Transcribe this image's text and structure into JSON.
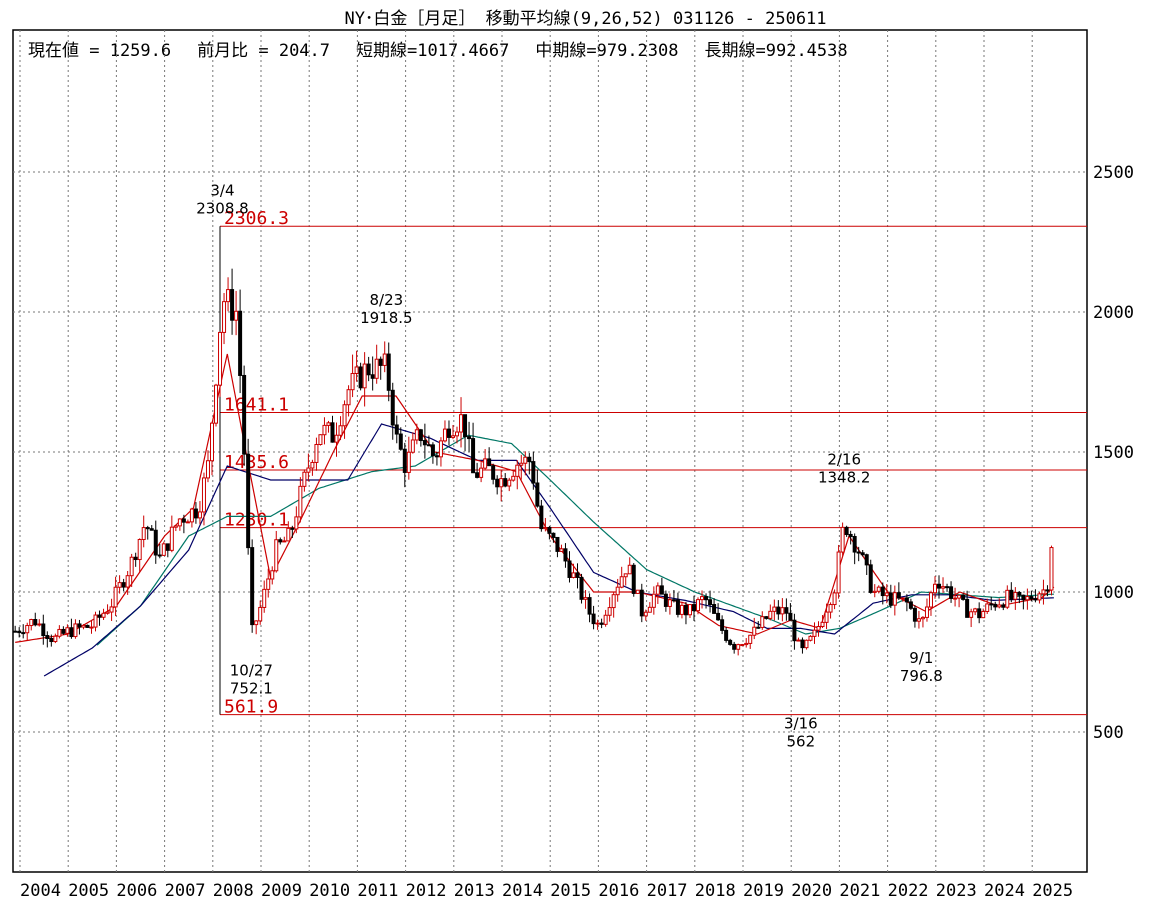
{
  "header": {
    "title": "NY･白金［月足］ 移動平均線(9,26,52)  031126 - 250611",
    "current_value": "現在値 = 1259.6",
    "month_change": "前月比 = 204.7",
    "short_ma": "短期線=1017.4667",
    "mid_ma": "中期線=979.2308",
    "long_ma": "長期線=992.4538"
  },
  "colors": {
    "candle_up": "#cc0000",
    "candle_down": "#000000",
    "short_ma": "#cc0000",
    "mid_ma": "#000066",
    "long_ma": "#007766",
    "level_line": "#cc0000",
    "grid": "#777777"
  },
  "chart_data": {
    "type": "candlestick",
    "x_labels": [
      "2004",
      "2005",
      "2006",
      "2007",
      "2008",
      "2009",
      "2010",
      "2011",
      "2012",
      "2013",
      "2014",
      "2015",
      "2016",
      "2017",
      "2018",
      "2019",
      "2020",
      "2021",
      "2022",
      "2023",
      "2024",
      "2025"
    ],
    "y_ticks": [
      "2500",
      "2000",
      "1500",
      "1000",
      "500"
    ],
    "ylim": [
      0,
      2800
    ],
    "grid": true,
    "levels": [
      {
        "value": 2306.3,
        "label": "2306.3"
      },
      {
        "value": 1641.1,
        "label": "1641.1"
      },
      {
        "value": 1435.6,
        "label": "1435.6"
      },
      {
        "value": 1230.1,
        "label": "1230.1"
      },
      {
        "value": 561.9,
        "label": "561.9"
      }
    ],
    "annotations": [
      {
        "date": "3/4",
        "value": "2308.8",
        "pos": "high",
        "year": 2008.2
      },
      {
        "date": "10/27",
        "value": "752.1",
        "pos": "low",
        "year": 2008.8
      },
      {
        "date": "8/23",
        "value": "1918.5",
        "pos": "high",
        "year": 2011.6
      },
      {
        "date": "2/16",
        "value": "1348.2",
        "pos": "high",
        "year": 2021.1
      },
      {
        "date": "3/16",
        "value": "562",
        "pos": "low",
        "year": 2020.2
      },
      {
        "date": "9/1",
        "value": "796.8",
        "pos": "low",
        "year": 2022.7
      }
    ],
    "price_anchors": [
      [
        2003.9,
        860
      ],
      [
        2004.3,
        900
      ],
      [
        2004.7,
        830
      ],
      [
        2005.0,
        860
      ],
      [
        2005.5,
        880
      ],
      [
        2005.9,
        960
      ],
      [
        2006.3,
        1100
      ],
      [
        2006.6,
        1250
      ],
      [
        2006.9,
        1120
      ],
      [
        2007.3,
        1260
      ],
      [
        2007.7,
        1300
      ],
      [
        2007.9,
        1450
      ],
      [
        2008.2,
        2050
      ],
      [
        2008.5,
        2000
      ],
      [
        2008.65,
        1500
      ],
      [
        2008.8,
        850
      ],
      [
        2009.0,
        950
      ],
      [
        2009.3,
        1150
      ],
      [
        2009.6,
        1200
      ],
      [
        2009.9,
        1400
      ],
      [
        2010.2,
        1580
      ],
      [
        2010.5,
        1560
      ],
      [
        2010.8,
        1720
      ],
      [
        2011.2,
        1800
      ],
      [
        2011.6,
        1800
      ],
      [
        2011.8,
        1550
      ],
      [
        2012.0,
        1450
      ],
      [
        2012.3,
        1570
      ],
      [
        2012.6,
        1480
      ],
      [
        2012.9,
        1600
      ],
      [
        2013.2,
        1620
      ],
      [
        2013.4,
        1420
      ],
      [
        2013.7,
        1440
      ],
      [
        2014.0,
        1400
      ],
      [
        2014.3,
        1460
      ],
      [
        2014.6,
        1470
      ],
      [
        2014.8,
        1230
      ],
      [
        2015.2,
        1150
      ],
      [
        2015.5,
        1050
      ],
      [
        2015.8,
        930
      ],
      [
        2016.0,
        880
      ],
      [
        2016.3,
        1000
      ],
      [
        2016.6,
        1100
      ],
      [
        2016.9,
        930
      ],
      [
        2017.2,
        1000
      ],
      [
        2017.6,
        940
      ],
      [
        2017.9,
        930
      ],
      [
        2018.2,
        980
      ],
      [
        2018.5,
        880
      ],
      [
        2018.8,
        810
      ],
      [
        2019.2,
        850
      ],
      [
        2019.6,
        930
      ],
      [
        2019.9,
        930
      ],
      [
        2020.2,
        780
      ],
      [
        2020.5,
        850
      ],
      [
        2020.9,
        1020
      ],
      [
        2021.1,
        1250
      ],
      [
        2021.4,
        1150
      ],
      [
        2021.7,
        1000
      ],
      [
        2022.0,
        980
      ],
      [
        2022.4,
        960
      ],
      [
        2022.7,
        880
      ],
      [
        2023.0,
        1050
      ],
      [
        2023.3,
        1000
      ],
      [
        2023.6,
        940
      ],
      [
        2023.9,
        920
      ],
      [
        2024.2,
        960
      ],
      [
        2024.5,
        980
      ],
      [
        2024.8,
        960
      ],
      [
        2025.1,
        1000
      ],
      [
        2025.3,
        1010
      ],
      [
        2025.45,
        1259.6
      ]
    ],
    "ma_short_anchors": [
      [
        2003.9,
        820
      ],
      [
        2005.0,
        850
      ],
      [
        2006.0,
        950
      ],
      [
        2007.0,
        1200
      ],
      [
        2007.6,
        1300
      ],
      [
        2008.3,
        1850
      ],
      [
        2008.8,
        1400
      ],
      [
        2009.2,
        1050
      ],
      [
        2009.8,
        1250
      ],
      [
        2010.5,
        1500
      ],
      [
        2011.1,
        1700
      ],
      [
        2011.8,
        1700
      ],
      [
        2012.6,
        1500
      ],
      [
        2013.5,
        1470
      ],
      [
        2014.3,
        1430
      ],
      [
        2015.0,
        1200
      ],
      [
        2015.9,
        1000
      ],
      [
        2016.8,
        1000
      ],
      [
        2017.8,
        960
      ],
      [
        2018.5,
        880
      ],
      [
        2019.3,
        850
      ],
      [
        2020.0,
        900
      ],
      [
        2020.6,
        870
      ],
      [
        2021.2,
        1200
      ],
      [
        2022.0,
        1000
      ],
      [
        2022.8,
        930
      ],
      [
        2023.5,
        1000
      ],
      [
        2024.3,
        950
      ],
      [
        2025.2,
        980
      ],
      [
        2025.45,
        1017.5
      ]
    ],
    "ma_mid_anchors": [
      [
        2004.5,
        700
      ],
      [
        2005.5,
        800
      ],
      [
        2006.5,
        950
      ],
      [
        2007.5,
        1150
      ],
      [
        2008.3,
        1450
      ],
      [
        2009.2,
        1400
      ],
      [
        2010.0,
        1400
      ],
      [
        2010.8,
        1400
      ],
      [
        2011.5,
        1600
      ],
      [
        2012.5,
        1550
      ],
      [
        2013.5,
        1470
      ],
      [
        2014.3,
        1470
      ],
      [
        2015.0,
        1300
      ],
      [
        2015.9,
        1070
      ],
      [
        2016.8,
        1000
      ],
      [
        2017.8,
        970
      ],
      [
        2018.8,
        930
      ],
      [
        2019.5,
        870
      ],
      [
        2020.2,
        870
      ],
      [
        2020.9,
        850
      ],
      [
        2021.7,
        960
      ],
      [
        2022.5,
        990
      ],
      [
        2023.3,
        990
      ],
      [
        2024.2,
        970
      ],
      [
        2025.45,
        979.2
      ]
    ],
    "ma_long_anchors": [
      [
        2005.6,
        810
      ],
      [
        2006.5,
        950
      ],
      [
        2007.5,
        1200
      ],
      [
        2008.3,
        1270
      ],
      [
        2009.2,
        1270
      ],
      [
        2010.2,
        1370
      ],
      [
        2011.3,
        1430
      ],
      [
        2012.2,
        1450
      ],
      [
        2013.3,
        1560
      ],
      [
        2014.2,
        1530
      ],
      [
        2015.0,
        1400
      ],
      [
        2015.9,
        1250
      ],
      [
        2017.0,
        1080
      ],
      [
        2018.0,
        1000
      ],
      [
        2018.8,
        950
      ],
      [
        2019.6,
        900
      ],
      [
        2020.3,
        850
      ],
      [
        2021.0,
        870
      ],
      [
        2021.8,
        930
      ],
      [
        2022.7,
        1000
      ],
      [
        2023.5,
        990
      ],
      [
        2024.3,
        980
      ],
      [
        2025.45,
        992.5
      ]
    ]
  }
}
